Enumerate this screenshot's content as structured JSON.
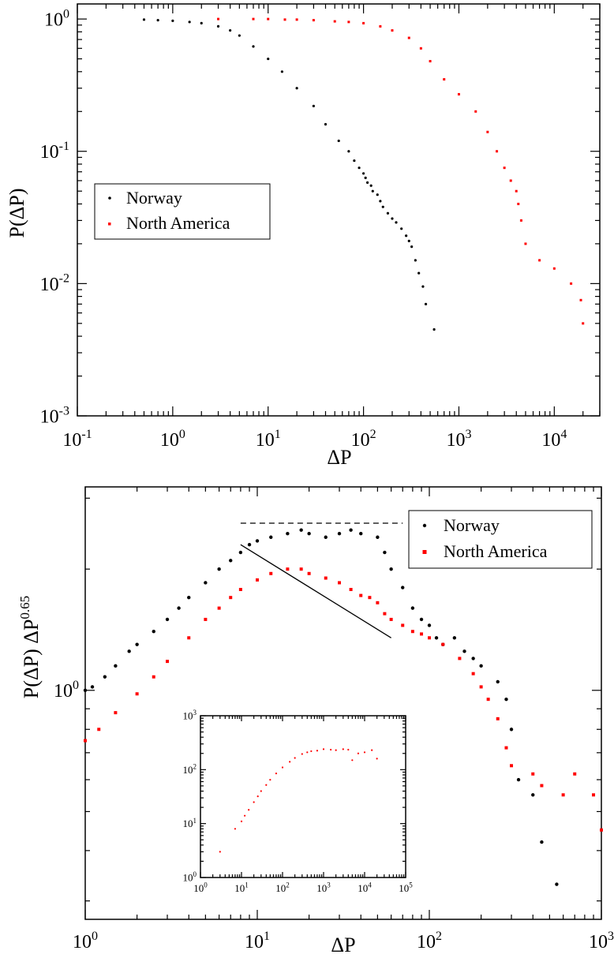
{
  "chart_data": [
    {
      "type": "scatter",
      "panel": "top",
      "xscale": "log",
      "yscale": "log",
      "xlim": [
        0.1,
        30000
      ],
      "ylim": [
        0.001,
        1.3
      ],
      "xlabel": "ΔP",
      "ylabel": "P(ΔP)",
      "grid": false,
      "legend_position": "center-left",
      "x_ticks": [
        {
          "value": 0.1,
          "base": "10",
          "exp": "-1"
        },
        {
          "value": 1,
          "base": "10",
          "exp": "0"
        },
        {
          "value": 10,
          "base": "10",
          "exp": "1"
        },
        {
          "value": 100,
          "base": "10",
          "exp": "2"
        },
        {
          "value": 1000,
          "base": "10",
          "exp": "3"
        },
        {
          "value": 10000,
          "base": "10",
          "exp": "4"
        }
      ],
      "y_ticks": [
        {
          "value": 0.001,
          "base": "10",
          "exp": "-3"
        },
        {
          "value": 0.01,
          "base": "10",
          "exp": "-2"
        },
        {
          "value": 0.1,
          "base": "10",
          "exp": "-1"
        },
        {
          "value": 1,
          "base": "10",
          "exp": "0"
        }
      ],
      "series": [
        {
          "name": "Norway",
          "color": "#000000",
          "marker": "dot",
          "x": [
            0.5,
            0.7,
            1,
            1.5,
            2,
            3,
            4,
            5,
            7,
            10,
            14,
            20,
            30,
            40,
            55,
            70,
            80,
            90,
            100,
            105,
            110,
            120,
            125,
            140,
            150,
            160,
            180,
            200,
            220,
            250,
            280,
            300,
            320,
            350,
            380,
            420,
            450,
            550
          ],
          "y": [
            0.99,
            0.98,
            0.97,
            0.95,
            0.93,
            0.88,
            0.82,
            0.75,
            0.62,
            0.5,
            0.4,
            0.3,
            0.22,
            0.16,
            0.12,
            0.1,
            0.085,
            0.075,
            0.068,
            0.063,
            0.058,
            0.055,
            0.05,
            0.047,
            0.042,
            0.038,
            0.034,
            0.031,
            0.029,
            0.026,
            0.023,
            0.021,
            0.019,
            0.015,
            0.012,
            0.0095,
            0.007,
            0.0045
          ]
        },
        {
          "name": "North America",
          "color": "#ff0000",
          "marker": "square",
          "x": [
            3,
            7,
            10,
            15,
            20,
            30,
            50,
            70,
            100,
            150,
            200,
            300,
            400,
            500,
            700,
            1000,
            1500,
            2000,
            2500,
            3000,
            3500,
            4000,
            4200,
            4500,
            5000,
            7000,
            10000,
            15000,
            19000,
            20000
          ],
          "y": [
            1.0,
            1.0,
            1.0,
            0.99,
            0.99,
            0.98,
            0.96,
            0.95,
            0.93,
            0.88,
            0.82,
            0.72,
            0.6,
            0.48,
            0.35,
            0.27,
            0.2,
            0.14,
            0.1,
            0.075,
            0.06,
            0.05,
            0.04,
            0.03,
            0.02,
            0.015,
            0.013,
            0.01,
            0.0075,
            0.005
          ]
        }
      ]
    },
    {
      "type": "scatter",
      "panel": "bottom",
      "xscale": "log",
      "yscale": "log",
      "xlim": [
        1,
        1000
      ],
      "ylim": [
        0.27,
        3.2
      ],
      "xlabel": "ΔP",
      "ylabel_main": "P(ΔP) ΔP",
      "ylabel_exp": "0.65",
      "grid": false,
      "legend_position": "top-right",
      "x_ticks": [
        {
          "value": 1,
          "base": "10",
          "exp": "0"
        },
        {
          "value": 10,
          "base": "10",
          "exp": "1"
        },
        {
          "value": 100,
          "base": "10",
          "exp": "2"
        },
        {
          "value": 1000,
          "base": "10",
          "exp": "3"
        }
      ],
      "y_ticks": [
        {
          "value": 1,
          "base": "10",
          "exp": "0"
        }
      ],
      "series": [
        {
          "name": "Norway",
          "color": "#000000",
          "marker": "dot",
          "x": [
            1,
            1.1,
            1.3,
            1.5,
            1.8,
            2,
            2.5,
            3,
            3.5,
            4,
            5,
            6,
            7,
            8,
            9,
            10,
            12,
            15,
            18,
            20,
            25,
            30,
            35,
            40,
            50,
            55,
            60,
            70,
            80,
            90,
            100,
            110,
            120,
            140,
            160,
            180,
            200,
            250,
            280,
            300,
            330,
            400,
            450,
            550
          ],
          "y": [
            1.0,
            1.02,
            1.08,
            1.15,
            1.25,
            1.3,
            1.4,
            1.5,
            1.6,
            1.7,
            1.85,
            2.0,
            2.1,
            2.2,
            2.3,
            2.35,
            2.4,
            2.45,
            2.5,
            2.45,
            2.4,
            2.45,
            2.5,
            2.45,
            2.4,
            2.2,
            2.0,
            1.8,
            1.6,
            1.5,
            1.45,
            1.35,
            1.3,
            1.35,
            1.25,
            1.2,
            1.15,
            1.05,
            0.95,
            0.8,
            0.6,
            0.55,
            0.42,
            0.33
          ]
        },
        {
          "name": "North America",
          "color": "#ff0000",
          "marker": "square",
          "x": [
            1,
            1.2,
            1.5,
            2,
            2.5,
            3,
            4,
            5,
            6,
            7,
            8,
            10,
            12,
            15,
            18,
            20,
            25,
            30,
            35,
            40,
            45,
            50,
            55,
            60,
            70,
            80,
            90,
            100,
            120,
            150,
            180,
            200,
            220,
            250,
            280,
            300,
            400,
            450,
            600,
            700,
            900,
            1000
          ],
          "y": [
            0.75,
            0.8,
            0.88,
            0.98,
            1.08,
            1.18,
            1.35,
            1.5,
            1.6,
            1.7,
            1.78,
            1.88,
            1.95,
            2.0,
            2.0,
            1.95,
            1.9,
            1.85,
            1.78,
            1.72,
            1.7,
            1.65,
            1.55,
            1.5,
            1.45,
            1.4,
            1.38,
            1.35,
            1.3,
            1.2,
            1.1,
            1.02,
            0.95,
            0.85,
            0.72,
            0.65,
            0.62,
            0.58,
            0.55,
            0.62,
            0.55,
            0.45
          ]
        }
      ],
      "reference_lines": [
        {
          "name": "dashed-plateau",
          "style": "dashed",
          "x": [
            8,
            70
          ],
          "y": [
            2.6,
            2.6
          ]
        },
        {
          "name": "fit-line",
          "style": "solid",
          "x": [
            8,
            60
          ],
          "y": [
            2.3,
            1.35
          ]
        }
      ],
      "inset": {
        "xscale": "log",
        "yscale": "log",
        "xlim": [
          1,
          100000
        ],
        "ylim": [
          1,
          1000
        ],
        "x_ticks": [
          {
            "value": 1,
            "base": "10",
            "exp": "0"
          },
          {
            "value": 10,
            "base": "10",
            "exp": "1"
          },
          {
            "value": 100,
            "base": "10",
            "exp": "2"
          },
          {
            "value": 1000,
            "base": "10",
            "exp": "3"
          },
          {
            "value": 10000,
            "base": "10",
            "exp": "4"
          },
          {
            "value": 100000,
            "base": "10",
            "exp": "5"
          }
        ],
        "y_ticks": [
          {
            "value": 1,
            "base": "10",
            "exp": "0"
          },
          {
            "value": 10,
            "base": "10",
            "exp": "1"
          },
          {
            "value": 100,
            "base": "10",
            "exp": "2"
          },
          {
            "value": 1000,
            "base": "10",
            "exp": "3"
          }
        ],
        "series": [
          {
            "color": "#ff0000",
            "marker": "dot",
            "x": [
              3,
              7,
              10,
              12,
              15,
              20,
              25,
              30,
              40,
              50,
              70,
              100,
              150,
              200,
              300,
              400,
              500,
              700,
              1000,
              1500,
              2000,
              3000,
              4000,
              5000,
              7000,
              10000,
              15000,
              20000
            ],
            "y": [
              3,
              8,
              11,
              14,
              18,
              25,
              32,
              40,
              52,
              65,
              85,
              110,
              140,
              165,
              195,
              210,
              220,
              225,
              240,
              235,
              230,
              240,
              235,
              150,
              200,
              210,
              230,
              160
            ]
          }
        ]
      }
    }
  ]
}
